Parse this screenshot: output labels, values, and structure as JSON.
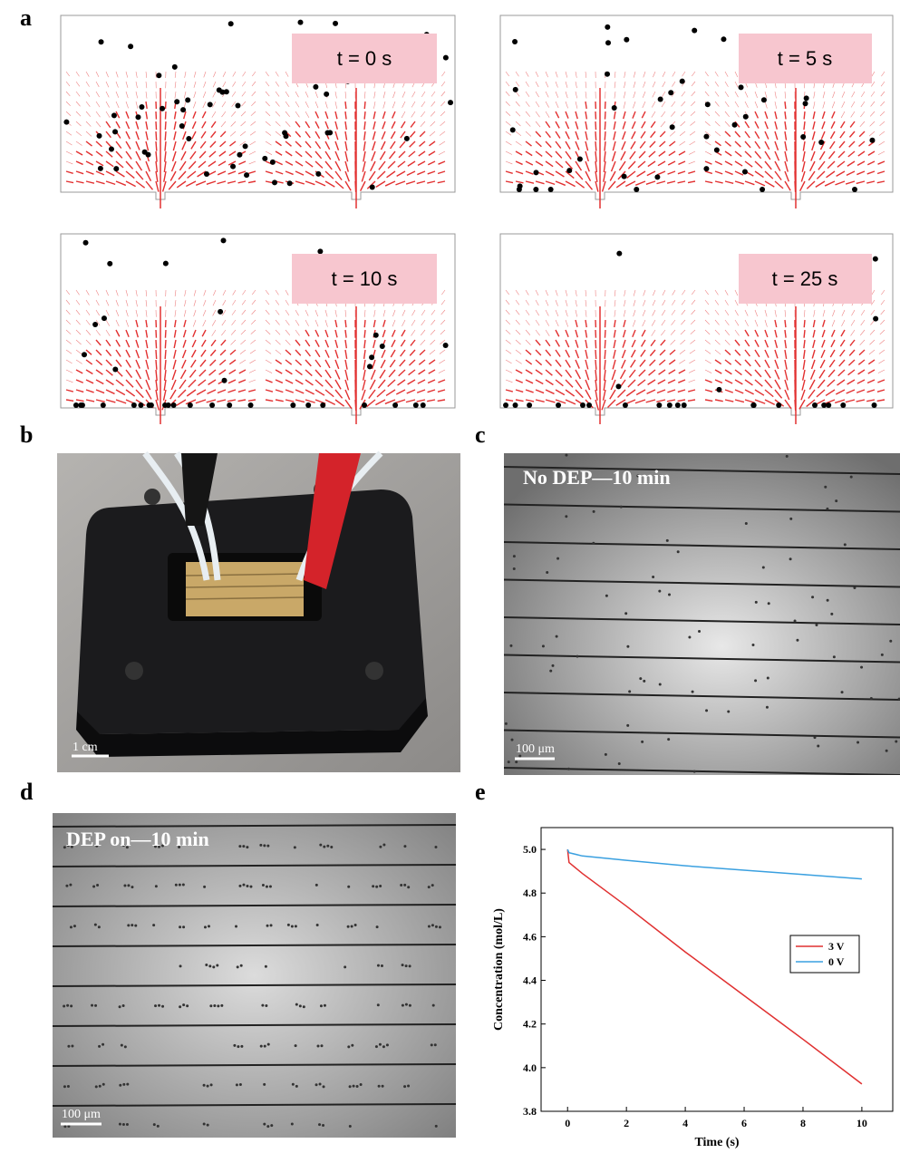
{
  "figure": {
    "panel_labels": [
      "a",
      "b",
      "c",
      "d",
      "e"
    ],
    "a": {
      "times": [
        "t = 0 s",
        "t = 5 s",
        "t = 10 s",
        "t = 25 s"
      ]
    },
    "b": {
      "scale_bar": "1 cm"
    },
    "c": {
      "caption": "No DEP—10 min",
      "scale_bar": "100 μm"
    },
    "d": {
      "caption": "DEP on—10 min",
      "scale_bar": "100 μm"
    }
  },
  "chart_data": {
    "type": "line",
    "x_label": "Time (s)",
    "y_label": "Concentration (mol/L)",
    "x": [
      0,
      0.05,
      0.5,
      2,
      4,
      6,
      8,
      10
    ],
    "series": [
      {
        "name": "3 V",
        "color": "#e03030",
        "values": [
          5.0,
          4.94,
          4.89,
          4.74,
          4.53,
          4.33,
          4.13,
          3.925
        ]
      },
      {
        "name": "0 V",
        "color": "#3aa0e0",
        "values": [
          5.0,
          4.985,
          4.97,
          4.95,
          4.925,
          4.905,
          4.885,
          4.865
        ]
      }
    ],
    "xlim": [
      -0.9,
      11.05
    ],
    "xticks": [
      0,
      2,
      4,
      6,
      8,
      10
    ],
    "ylim": [
      3.8,
      5.1
    ],
    "yticks": [
      3.8,
      {
        "value": 4.0,
        "label": "4.0"
      },
      4.2,
      4.4,
      4.6,
      4.8,
      {
        "value": 5.0,
        "label": "5.0"
      }
    ],
    "legend": "right"
  }
}
